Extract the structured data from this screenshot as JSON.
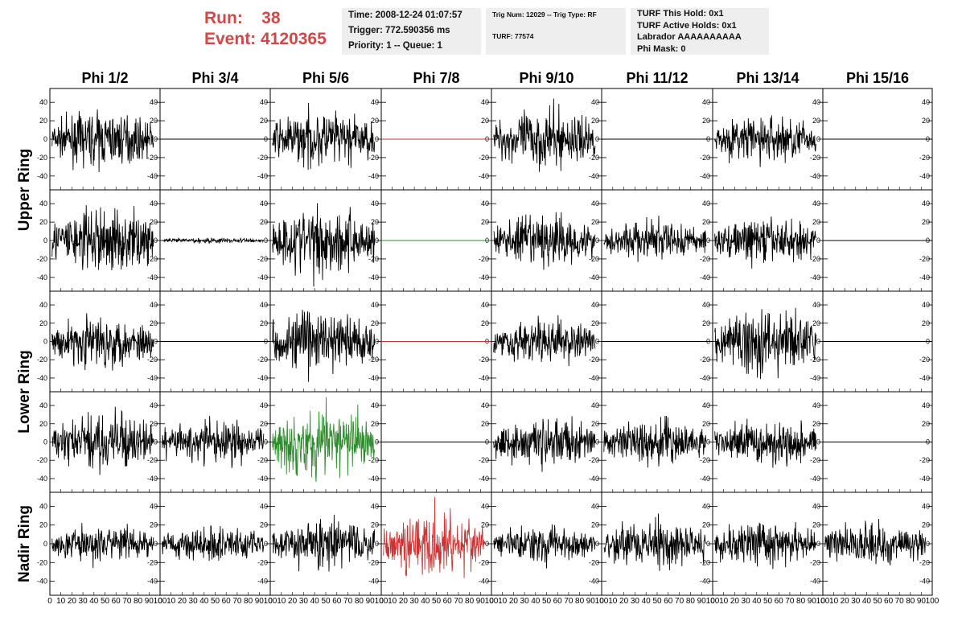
{
  "header": {
    "run_label": "Run:",
    "run_value": "38",
    "event_label": "Event:",
    "event_value": "4120365",
    "time": "Time: 2008-12-24 01:07:57",
    "trigger": "Trigger: 772.590356 ms",
    "priority": "Priority: 1 -- Queue: 1",
    "trig_num": "Trig Num: 12029 -- Trig Type: RF",
    "turf": "TURF: 77574",
    "turf_hold": "TURF This Hold: 0x1",
    "turf_active": "TURF Active Holds: 0x1",
    "labrador": "Labrador AAAAAAAAAA",
    "phi_mask": "Phi Mask: 0"
  },
  "chart_data": {
    "type": "line",
    "columns": [
      "Phi 1/2",
      "Phi 3/4",
      "Phi 5/6",
      "Phi 7/8",
      "Phi 9/10",
      "Phi 11/12",
      "Phi 13/14",
      "Phi 15/16"
    ],
    "rows": [
      "Upper Ring",
      "Upper Ring",
      "Lower Ring",
      "Lower Ring",
      "Nadir Ring"
    ],
    "row_labels": [
      {
        "text": "Upper Ring",
        "span_rows": [
          0,
          1
        ]
      },
      {
        "text": "Lower Ring",
        "span_rows": [
          2,
          3
        ]
      },
      {
        "text": "Nadir Ring",
        "span_rows": [
          4,
          4
        ]
      }
    ],
    "xlim": [
      0,
      100
    ],
    "ylim": [
      -55,
      55
    ],
    "y_ticks": [
      -40,
      -20,
      0,
      20,
      40
    ],
    "x_ticks": [
      0,
      10,
      20,
      30,
      40,
      50,
      60,
      70,
      80,
      90,
      100
    ],
    "x_tick_labels": [
      "0",
      "10",
      "20",
      "30",
      "40",
      "50",
      "60",
      "70",
      "80",
      "90",
      "100"
    ],
    "colors": {
      "normal": "#000000",
      "triggered": "#cc3333",
      "highlight": "#2e8b2e"
    },
    "panels": [
      [
        {
          "kind": "wave",
          "amp": 14,
          "color": "normal"
        },
        {
          "kind": "flat",
          "color": "normal"
        },
        {
          "kind": "wave",
          "amp": 15,
          "color": "normal"
        },
        {
          "kind": "flat",
          "color": "triggered"
        },
        {
          "kind": "wave",
          "amp": 16,
          "color": "normal"
        },
        {
          "kind": "flat",
          "color": "normal"
        },
        {
          "kind": "wave",
          "amp": 13,
          "color": "normal"
        },
        {
          "kind": "flat",
          "color": "normal"
        }
      ],
      [
        {
          "kind": "wave",
          "amp": 18,
          "color": "normal"
        },
        {
          "kind": "wave",
          "amp": 1.5,
          "color": "normal"
        },
        {
          "kind": "wave",
          "amp": 19,
          "color": "normal"
        },
        {
          "kind": "flat",
          "color": "highlight"
        },
        {
          "kind": "wave",
          "amp": 14,
          "color": "normal"
        },
        {
          "kind": "wave",
          "amp": 11,
          "color": "normal"
        },
        {
          "kind": "wave",
          "amp": 12,
          "color": "normal"
        },
        {
          "kind": "flat",
          "color": "normal"
        }
      ],
      [
        {
          "kind": "wave",
          "amp": 14,
          "color": "normal"
        },
        {
          "kind": "flat",
          "color": "normal"
        },
        {
          "kind": "wave",
          "amp": 18,
          "color": "normal"
        },
        {
          "kind": "flat",
          "color": "triggered"
        },
        {
          "kind": "wave",
          "amp": 12,
          "color": "normal"
        },
        {
          "kind": "flat",
          "color": "normal"
        },
        {
          "kind": "wave",
          "amp": 18,
          "color": "normal"
        },
        {
          "kind": "flat",
          "color": "normal"
        }
      ],
      [
        {
          "kind": "wave",
          "amp": 15,
          "color": "normal"
        },
        {
          "kind": "wave",
          "amp": 12,
          "color": "normal"
        },
        {
          "kind": "wave",
          "amp": 20,
          "color": "highlight"
        },
        {
          "kind": "flat",
          "color": "normal"
        },
        {
          "kind": "wave",
          "amp": 13,
          "color": "normal"
        },
        {
          "kind": "wave",
          "amp": 12,
          "color": "normal"
        },
        {
          "kind": "wave",
          "amp": 12,
          "color": "normal"
        },
        {
          "kind": "flat",
          "color": "normal"
        }
      ],
      [
        {
          "kind": "wave",
          "amp": 10,
          "color": "normal"
        },
        {
          "kind": "wave",
          "amp": 10,
          "color": "normal"
        },
        {
          "kind": "wave",
          "amp": 13,
          "color": "normal"
        },
        {
          "kind": "wave",
          "amp": 17,
          "color": "triggered"
        },
        {
          "kind": "wave",
          "amp": 10,
          "color": "normal"
        },
        {
          "kind": "wave",
          "amp": 13,
          "color": "normal"
        },
        {
          "kind": "wave",
          "amp": 12,
          "color": "normal"
        },
        {
          "kind": "wave",
          "amp": 11,
          "color": "normal"
        }
      ]
    ]
  }
}
